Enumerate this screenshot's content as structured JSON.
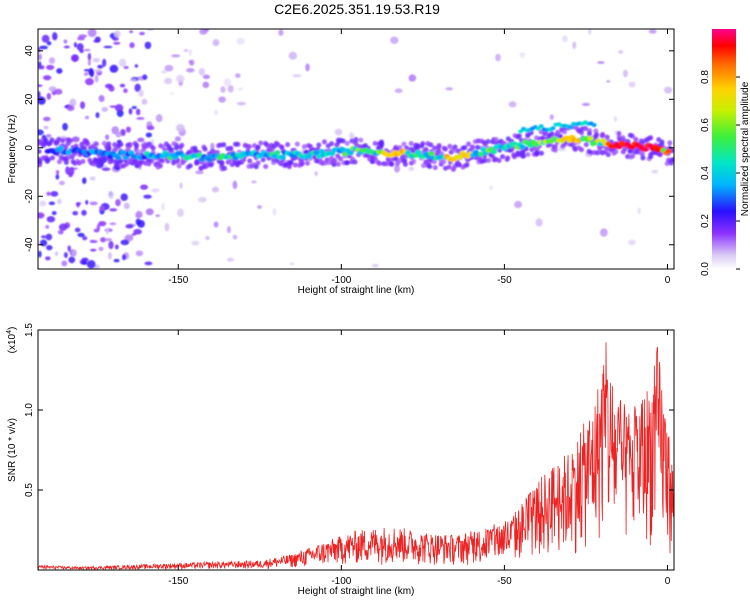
{
  "title": "C2E6.2025.351.19.53.R19",
  "chart_data": [
    {
      "type": "heatmap",
      "xlabel": "Height of straight line (km)",
      "ylabel": "Frequency (Hz)",
      "xlim": [
        -193,
        2
      ],
      "ylim": [
        -50,
        49
      ],
      "xticks": [
        -150,
        -100,
        -50,
        0
      ],
      "yticks": [
        -40,
        -20,
        0,
        20,
        40
      ],
      "colorbar": {
        "label": "Normalized spectral amplitude",
        "range": [
          0.0,
          1.0
        ],
        "ticks": [
          0.0,
          0.2,
          0.4,
          0.6,
          0.8
        ]
      },
      "ridge": {
        "x": [
          -193,
          -185,
          -170,
          -155,
          -140,
          -125,
          -110,
          -95,
          -85,
          -75,
          -65,
          -55,
          -45,
          -35,
          -28,
          -20,
          -12,
          -5,
          0,
          2
        ],
        "frequency": [
          -2,
          -1,
          -3,
          -3,
          -4,
          -3,
          -3,
          -1,
          -2,
          -3,
          -4,
          -1,
          1,
          3,
          4,
          2,
          1,
          0,
          -2,
          -2
        ]
      }
    },
    {
      "type": "line",
      "xlabel": "Height of straight line (km)",
      "ylabel": "SNR (10 * v/v)",
      "y_multiplier": "(x10",
      "y_multiplier_exp": "4",
      "y_multiplier_close": ")",
      "xlim": [
        -193,
        2
      ],
      "ylim": [
        0,
        1.5
      ],
      "xticks": [
        -150,
        -100,
        -50,
        0
      ],
      "yticks": [
        0.5,
        1.0,
        1.5
      ],
      "yticklabels": [
        "0.5",
        "1.0",
        "1.5"
      ],
      "color": "#ee2222",
      "envelope": {
        "x": [
          -193,
          -180,
          -165,
          -155,
          -140,
          -125,
          -115,
          -105,
          -95,
          -85,
          -75,
          -65,
          -55,
          -48,
          -42,
          -36,
          -30,
          -26,
          -22,
          -19,
          -17,
          -14,
          -11,
          -8,
          -5,
          -3,
          0,
          2
        ],
        "y": [
          0.03,
          0.02,
          0.03,
          0.04,
          0.05,
          0.06,
          0.1,
          0.18,
          0.25,
          0.28,
          0.24,
          0.22,
          0.27,
          0.33,
          0.5,
          0.65,
          0.75,
          0.9,
          1.1,
          1.45,
          1.2,
          1.05,
          1.0,
          1.1,
          1.2,
          1.42,
          0.95,
          0.6
        ]
      }
    }
  ]
}
